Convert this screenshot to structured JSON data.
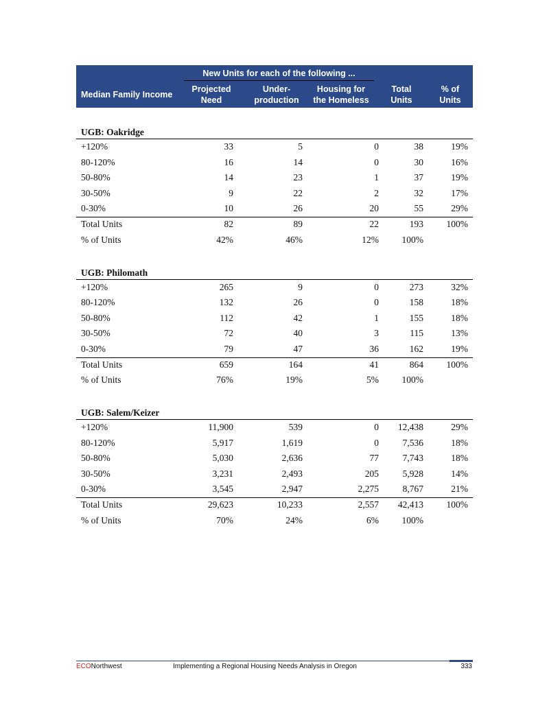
{
  "table": {
    "header": {
      "group_label": "New Units for each of the following ...",
      "columns": [
        [
          "Median Family Income"
        ],
        [
          "Projected",
          "Need"
        ],
        [
          "Under-",
          "production"
        ],
        [
          "Housing for",
          "the Homeless"
        ],
        [
          "Total",
          "Units"
        ],
        [
          "% of",
          "Units"
        ]
      ]
    },
    "sections": [
      {
        "title": "UGB: Oakridge",
        "rows": [
          [
            "+120%",
            "33",
            "5",
            "0",
            "38",
            "19%"
          ],
          [
            "80-120%",
            "16",
            "14",
            "0",
            "30",
            "16%"
          ],
          [
            "50-80%",
            "14",
            "23",
            "1",
            "37",
            "19%"
          ],
          [
            "30-50%",
            "9",
            "22",
            "2",
            "32",
            "17%"
          ],
          [
            "0-30%",
            "10",
            "26",
            "20",
            "55",
            "29%"
          ]
        ],
        "total": [
          "Total Units",
          "82",
          "89",
          "22",
          "193",
          "100%"
        ],
        "percent": [
          "% of Units",
          "42%",
          "46%",
          "12%",
          "100%"
        ]
      },
      {
        "title": "UGB: Philomath",
        "rows": [
          [
            "+120%",
            "265",
            "9",
            "0",
            "273",
            "32%"
          ],
          [
            "80-120%",
            "132",
            "26",
            "0",
            "158",
            "18%"
          ],
          [
            "50-80%",
            "112",
            "42",
            "1",
            "155",
            "18%"
          ],
          [
            "30-50%",
            "72",
            "40",
            "3",
            "115",
            "13%"
          ],
          [
            "0-30%",
            "79",
            "47",
            "36",
            "162",
            "19%"
          ]
        ],
        "total": [
          "Total Units",
          "659",
          "164",
          "41",
          "864",
          "100%"
        ],
        "percent": [
          "% of Units",
          "76%",
          "19%",
          "5%",
          "100%"
        ]
      },
      {
        "title": "UGB: Salem/Keizer",
        "rows": [
          [
            "+120%",
            "11,900",
            "539",
            "0",
            "12,438",
            "29%"
          ],
          [
            "80-120%",
            "5,917",
            "1,619",
            "0",
            "7,536",
            "18%"
          ],
          [
            "50-80%",
            "5,030",
            "2,636",
            "77",
            "7,743",
            "18%"
          ],
          [
            "30-50%",
            "3,231",
            "2,493",
            "205",
            "5,928",
            "14%"
          ],
          [
            "0-30%",
            "3,545",
            "2,947",
            "2,275",
            "8,767",
            "21%"
          ]
        ],
        "total": [
          "Total Units",
          "29,623",
          "10,233",
          "2,557",
          "42,413",
          "100%"
        ],
        "percent": [
          "% of Units",
          "70%",
          "24%",
          "6%",
          "100%"
        ]
      }
    ]
  },
  "footer": {
    "brand_prefix": "ECO",
    "brand_suffix": "Northwest",
    "title": "Implementing a Regional Housing Needs Analysis in Oregon",
    "page": "333"
  }
}
